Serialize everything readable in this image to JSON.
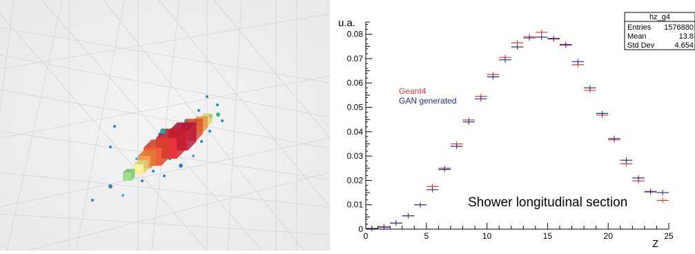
{
  "left_panel": {
    "description_icon": "3d-calorimeter-shower-view"
  },
  "chart_data": {
    "type": "histogram",
    "ylabel": "u.a.",
    "xlabel": "Z",
    "xlim": [
      0,
      25
    ],
    "ylim": [
      0,
      0.085
    ],
    "x_ticks": [
      "0",
      "5",
      "10",
      "15",
      "20",
      "25"
    ],
    "y_ticks": [
      "0",
      "0.01",
      "0.02",
      "0.03",
      "0.04",
      "0.05",
      "0.06",
      "0.07",
      "0.08"
    ],
    "annotation": "Shower longitudinal section",
    "legend": [
      "Geant4",
      "GAN generated"
    ],
    "stats_box": {
      "title": "hz_g4",
      "rows": [
        {
          "label": "Entries",
          "value": "1576880"
        },
        {
          "label": "Mean",
          "value": "13.8"
        },
        {
          "label": "Std Dev",
          "value": "4.654"
        }
      ]
    },
    "series": [
      {
        "name": "Geant4",
        "color": "#e8392d",
        "values": [
          0.0003,
          0.001,
          0.0025,
          0.0055,
          0.01,
          0.0175,
          0.025,
          0.035,
          0.0448,
          0.0545,
          0.0635,
          0.0705,
          0.0765,
          0.079,
          0.0808,
          0.078,
          0.0755,
          0.0675,
          0.057,
          0.0468,
          0.0367,
          0.0268,
          0.0198,
          0.0155,
          0.0118
        ]
      },
      {
        "name": "GAN generated",
        "color": "#1f2f86",
        "values": [
          0.0003,
          0.0008,
          0.0025,
          0.0055,
          0.01,
          0.0162,
          0.0245,
          0.034,
          0.044,
          0.0535,
          0.0625,
          0.0695,
          0.0748,
          0.0785,
          0.0788,
          0.0783,
          0.0758,
          0.0688,
          0.058,
          0.0475,
          0.0372,
          0.0283,
          0.021,
          0.0153,
          0.015
        ]
      }
    ],
    "colors": {
      "geant4": "#e8392d",
      "gan": "#1f2f86",
      "axis": "#000000"
    }
  }
}
